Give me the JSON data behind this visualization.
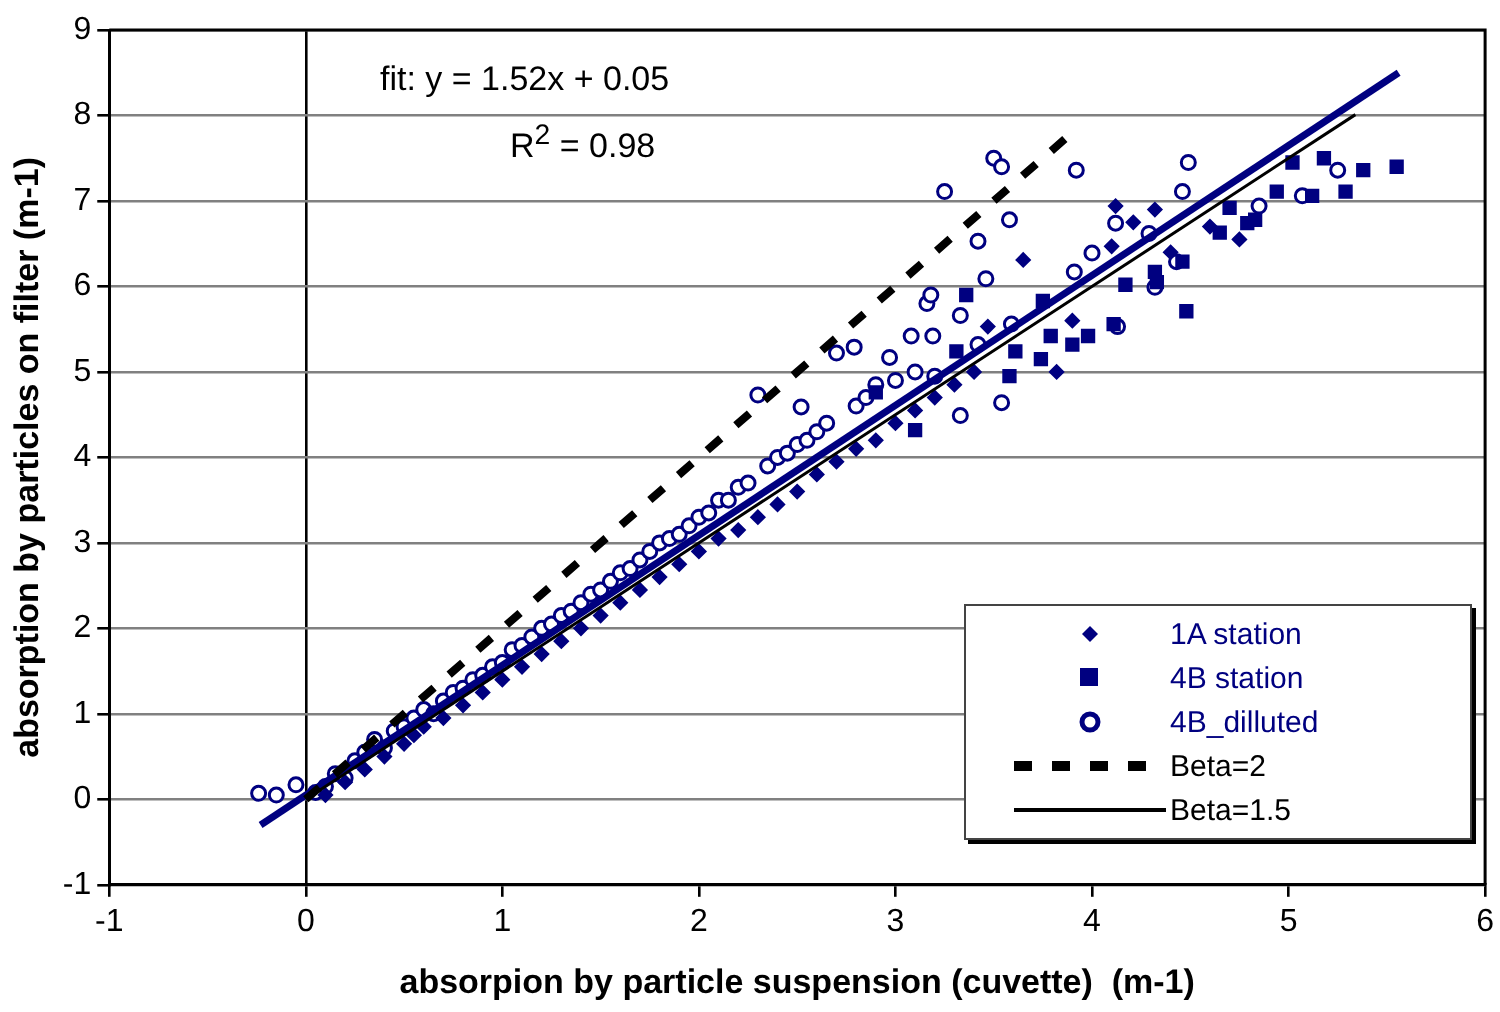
{
  "chart_data": {
    "type": "scatter",
    "xlabel": "absorpion by particle suspension (cuvette)  (m-1)",
    "ylabel": "absorption by particles on filter (m-1)",
    "xlim": [
      -1,
      6
    ],
    "ylim": [
      -1,
      9
    ],
    "xticks": [
      -1,
      0,
      1,
      2,
      3,
      4,
      5,
      6
    ],
    "yticks": [
      -1,
      0,
      1,
      2,
      3,
      4,
      5,
      6,
      7,
      8,
      9
    ],
    "grid": "y",
    "legend": "bottom right",
    "annotations": [
      "fit: y = 1.52x + 0.05",
      "R$^{2}$ = 0.98"
    ],
    "series": [
      {
        "name": "1A station",
        "type": "scatter",
        "marker": "diamond",
        "color": "#000080",
        "x": [
          0.1,
          0.2,
          0.3,
          0.4,
          0.5,
          0.55,
          0.6,
          0.7,
          0.8,
          0.9,
          1.0,
          1.1,
          1.2,
          1.3,
          1.4,
          1.5,
          1.6,
          1.7,
          1.8,
          1.9,
          2.0,
          2.1,
          2.2,
          2.3,
          2.4,
          2.5,
          2.6,
          2.7,
          2.8,
          2.9,
          3.0,
          3.1,
          3.2,
          3.3,
          3.4,
          3.47,
          3.65,
          3.82,
          3.9,
          4.1,
          4.12,
          4.21,
          4.32,
          4.4,
          4.6,
          4.75
        ],
        "values": [
          0.05,
          0.2,
          0.35,
          0.5,
          0.65,
          0.75,
          0.85,
          0.95,
          1.1,
          1.25,
          1.4,
          1.55,
          1.7,
          1.85,
          2.0,
          2.15,
          2.3,
          2.45,
          2.6,
          2.75,
          2.9,
          3.05,
          3.15,
          3.3,
          3.45,
          3.6,
          3.8,
          3.95,
          4.1,
          4.2,
          4.4,
          4.55,
          4.7,
          4.85,
          5.0,
          5.53,
          6.31,
          5.0,
          5.6,
          6.47,
          6.94,
          6.75,
          6.9,
          6.4,
          6.7,
          6.55
        ]
      },
      {
        "name": "4B station",
        "type": "scatter",
        "marker": "square",
        "color": "#000080",
        "x": [
          2.9,
          3.1,
          3.31,
          3.36,
          3.58,
          3.61,
          3.74,
          3.75,
          3.79,
          3.9,
          3.98,
          4.11,
          4.17,
          4.32,
          4.33,
          4.46,
          4.48,
          4.65,
          4.7,
          4.79,
          4.83,
          4.94,
          5.02,
          5.12,
          5.18,
          5.29,
          5.38,
          5.55
        ],
        "values": [
          4.76,
          4.32,
          5.24,
          5.9,
          4.95,
          5.24,
          5.15,
          5.83,
          5.42,
          5.32,
          5.42,
          5.56,
          6.02,
          6.17,
          6.05,
          6.29,
          5.71,
          6.63,
          6.92,
          6.74,
          6.78,
          7.11,
          7.45,
          7.06,
          7.5,
          7.11,
          7.36,
          7.4
        ]
      },
      {
        "name": "4B_dilluted",
        "type": "scatter",
        "marker": "circle",
        "color": "#000080",
        "x": [
          -0.24,
          -0.15,
          -0.05,
          0.05,
          0.1,
          0.15,
          0.2,
          0.25,
          0.3,
          0.35,
          0.4,
          0.45,
          0.5,
          0.55,
          0.6,
          0.65,
          0.7,
          0.75,
          0.8,
          0.85,
          0.9,
          0.95,
          1.0,
          1.05,
          1.1,
          1.15,
          1.2,
          1.25,
          1.3,
          1.35,
          1.4,
          1.45,
          1.5,
          1.55,
          1.6,
          1.65,
          1.7,
          1.75,
          1.8,
          1.85,
          1.9,
          1.95,
          2.0,
          2.05,
          2.1,
          2.15,
          2.2,
          2.25,
          2.3,
          2.35,
          2.4,
          2.45,
          2.5,
          2.52,
          2.55,
          2.6,
          2.65,
          2.7,
          2.79,
          2.8,
          2.85,
          2.9,
          2.97,
          3.0,
          3.08,
          3.1,
          3.16,
          3.18,
          3.19,
          3.2,
          3.25,
          3.33,
          3.33,
          3.42,
          3.42,
          3.46,
          3.5,
          3.54,
          3.54,
          3.58,
          3.59,
          3.92,
          3.91,
          4.0,
          4.12,
          4.13,
          4.29,
          4.32,
          4.43,
          4.46,
          4.49,
          4.85,
          5.07,
          5.25
        ],
        "values": [
          0.07,
          0.05,
          0.17,
          0.08,
          0.15,
          0.3,
          0.25,
          0.45,
          0.55,
          0.7,
          0.6,
          0.8,
          0.85,
          0.95,
          1.05,
          1.0,
          1.15,
          1.25,
          1.3,
          1.4,
          1.45,
          1.55,
          1.6,
          1.75,
          1.8,
          1.9,
          2.0,
          2.05,
          2.15,
          2.2,
          2.3,
          2.4,
          2.45,
          2.55,
          2.65,
          2.7,
          2.8,
          2.9,
          3.0,
          3.05,
          3.1,
          3.2,
          3.3,
          3.35,
          3.5,
          3.5,
          3.65,
          3.7,
          4.73,
          3.9,
          4.0,
          4.05,
          4.15,
          4.59,
          4.2,
          4.3,
          4.4,
          5.22,
          5.29,
          4.6,
          4.7,
          4.85,
          5.17,
          4.9,
          5.42,
          5.0,
          5.8,
          5.9,
          5.42,
          4.95,
          7.11,
          5.66,
          4.49,
          6.53,
          5.32,
          6.09,
          7.5,
          7.4,
          4.64,
          6.78,
          5.56,
          7.36,
          6.17,
          6.39,
          6.74,
          5.53,
          6.62,
          5.99,
          6.29,
          7.11,
          7.45,
          6.94,
          7.06,
          7.36
        ]
      },
      {
        "name": "Beta=2",
        "type": "line",
        "marker": "none",
        "line_style": "dashed",
        "color": "#000000",
        "x": [
          0,
          3.9
        ],
        "values": [
          0,
          7.8
        ]
      },
      {
        "name": "Beta=1.5",
        "type": "line",
        "marker": "none",
        "line_style": "solid",
        "color": "#000000",
        "x": [
          0,
          5.34
        ],
        "values": [
          0,
          8.01
        ]
      },
      {
        "type": "line",
        "marker": "none",
        "line_style": "solid",
        "color": "#000080",
        "x": [
          -0.23,
          5.56
        ],
        "values": [
          -0.3,
          8.5
        ]
      }
    ]
  }
}
